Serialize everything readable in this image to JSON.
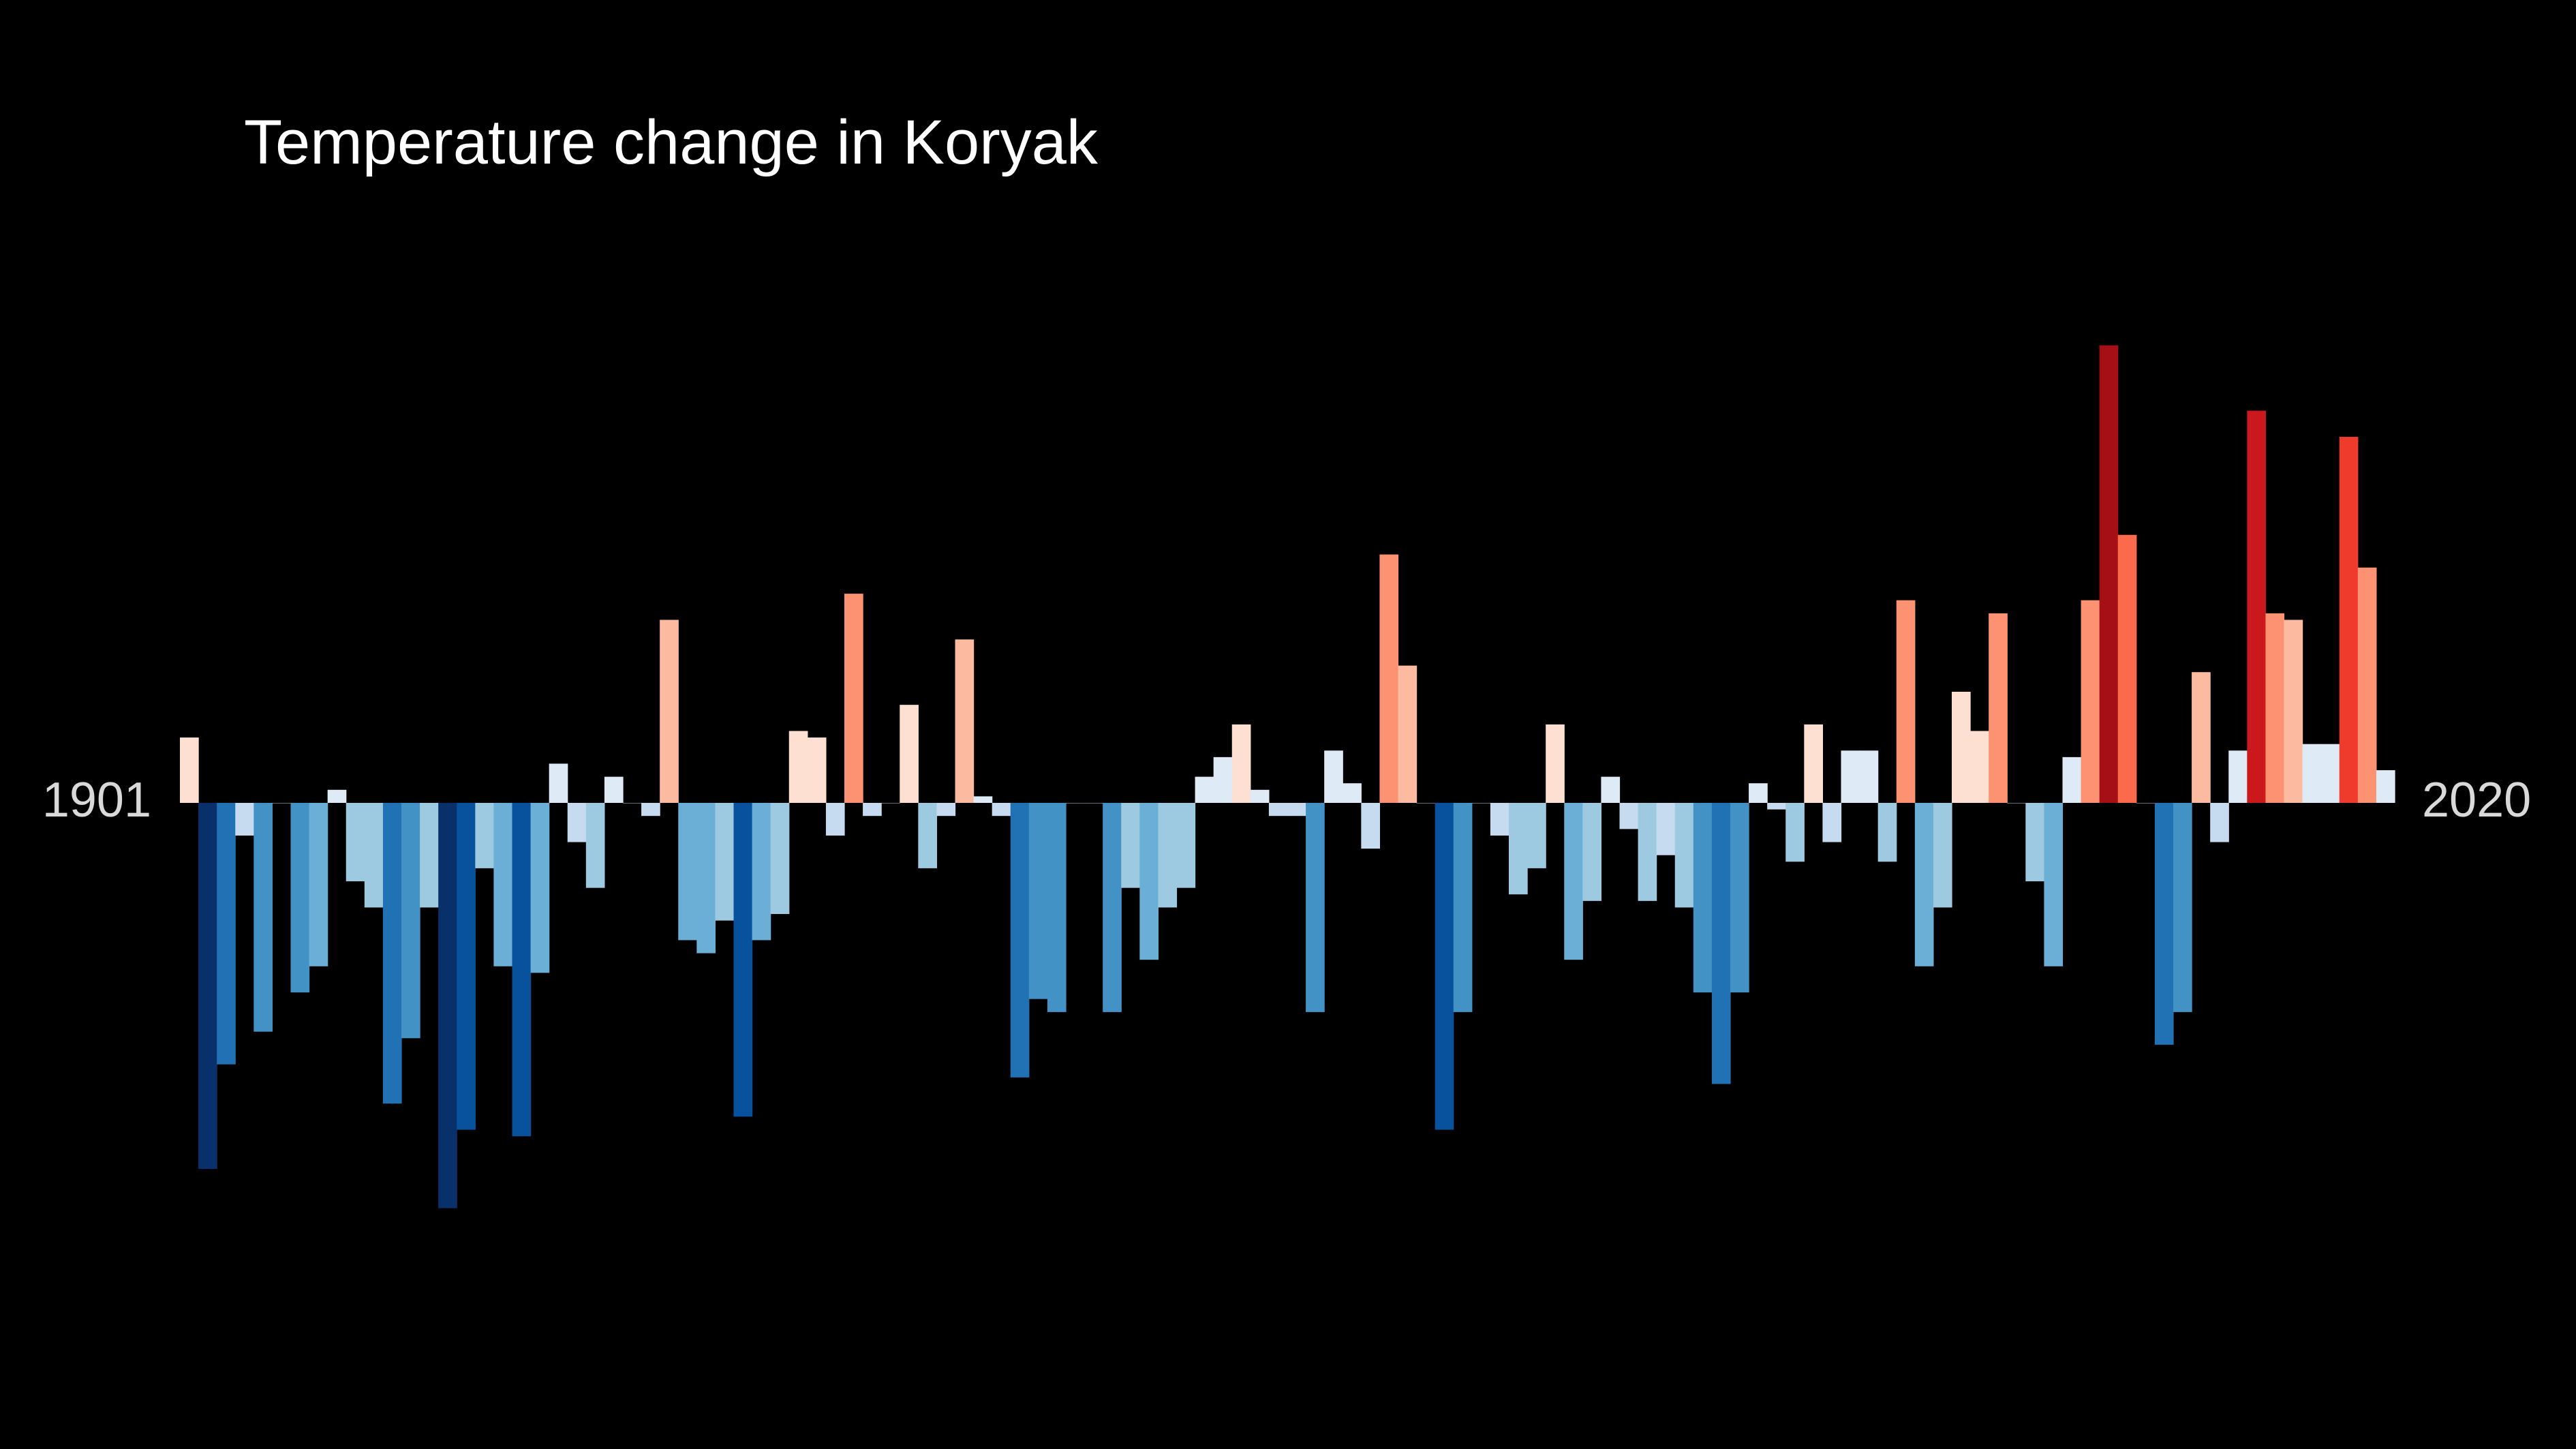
{
  "chart_data": {
    "type": "bar",
    "title": "Temperature change in Koryak",
    "start_year": "1901",
    "end_year": "2020",
    "categories": [
      "1901",
      "1902",
      "1903",
      "1904",
      "1905",
      "1906",
      "1907",
      "1908",
      "1909",
      "1910",
      "1911",
      "1912",
      "1913",
      "1914",
      "1915",
      "1916",
      "1917",
      "1918",
      "1919",
      "1920",
      "1921",
      "1922",
      "1923",
      "1924",
      "1925",
      "1926",
      "1927",
      "1928",
      "1929",
      "1930",
      "1931",
      "1932",
      "1933",
      "1934",
      "1935",
      "1936",
      "1937",
      "1938",
      "1939",
      "1940",
      "1941",
      "1942",
      "1943",
      "1944",
      "1945",
      "1946",
      "1947",
      "1948",
      "1949",
      "1950",
      "1951",
      "1952",
      "1953",
      "1954",
      "1955",
      "1956",
      "1957",
      "1958",
      "1959",
      "1960",
      "1961",
      "1962",
      "1963",
      "1964",
      "1965",
      "1966",
      "1967",
      "1968",
      "1969",
      "1970",
      "1971",
      "1972",
      "1973",
      "1974",
      "1975",
      "1976",
      "1977",
      "1978",
      "1979",
      "1980",
      "1981",
      "1982",
      "1983",
      "1984",
      "1985",
      "1986",
      "1987",
      "1988",
      "1989",
      "1990",
      "1991",
      "1992",
      "1993",
      "1994",
      "1995",
      "1996",
      "1997",
      "1998",
      "1999",
      "2000",
      "2001",
      "2002",
      "2003",
      "2004",
      "2005",
      "2006",
      "2007",
      "2008",
      "2009",
      "2010",
      "2011",
      "2012",
      "2013",
      "2014",
      "2015",
      "2016",
      "2017",
      "2018",
      "2019",
      "2020"
    ],
    "values": [
      0.1,
      -0.56,
      -0.4,
      -0.05,
      -0.35,
      0.0,
      -0.29,
      -0.25,
      0.02,
      -0.12,
      -0.16,
      -0.46,
      -0.36,
      -0.16,
      -0.62,
      -0.5,
      -0.1,
      -0.25,
      -0.51,
      -0.26,
      0.06,
      -0.06,
      -0.13,
      0.04,
      0.0,
      -0.02,
      0.28,
      -0.21,
      -0.23,
      -0.18,
      -0.48,
      -0.21,
      -0.17,
      0.11,
      0.1,
      -0.05,
      0.32,
      -0.02,
      0.0,
      0.15,
      -0.1,
      -0.02,
      0.25,
      0.01,
      -0.02,
      -0.42,
      -0.3,
      -0.32,
      0.0,
      0.0,
      -0.32,
      -0.13,
      -0.24,
      -0.16,
      -0.13,
      0.04,
      0.07,
      0.12,
      0.02,
      -0.02,
      -0.02,
      -0.32,
      0.08,
      0.03,
      -0.07,
      0.38,
      0.21,
      -0.0,
      -0.5,
      -0.32,
      -0.0,
      -0.05,
      -0.14,
      -0.1,
      0.12,
      -0.24,
      -0.15,
      0.04,
      -0.04,
      -0.15,
      -0.08,
      -0.16,
      -0.29,
      -0.43,
      -0.29,
      0.03,
      -0.01,
      -0.09,
      0.12,
      -0.06,
      0.08,
      0.08,
      -0.09,
      0.31,
      -0.25,
      -0.16,
      0.17,
      0.11,
      0.29,
      0.0,
      -0.12,
      -0.25,
      0.07,
      0.31,
      0.7,
      0.41,
      0.0,
      -0.37,
      -0.32,
      0.2,
      -0.06,
      0.08,
      0.6,
      0.29,
      0.28,
      0.09,
      0.09,
      0.56,
      0.36,
      0.05
    ],
    "ylim": [
      -0.65,
      0.85
    ],
    "colors": {
      "background": "#000000",
      "title": "#ffffff",
      "year_label": "#d9d9d9",
      "scale": [
        "#08306b",
        "#08519c",
        "#2171b5",
        "#4292c6",
        "#6baed6",
        "#9ecae1",
        "#c6dbef",
        "#deebf7",
        "#fee0d2",
        "#fcbba1",
        "#fc9272",
        "#fb6a4a",
        "#ef3b2c",
        "#cb181d",
        "#a50f15",
        "#67000d"
      ]
    }
  }
}
